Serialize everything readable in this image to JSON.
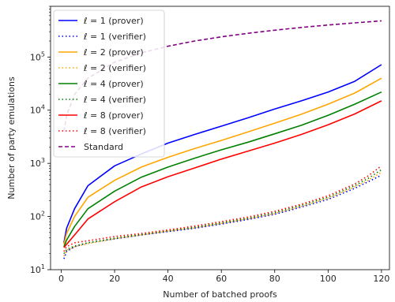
{
  "chart_data": {
    "type": "line",
    "xlabel": "Number of batched proofs",
    "ylabel": "Number of party emulations",
    "xlim": [
      -4,
      123
    ],
    "ylim": [
      10,
      900000
    ],
    "yscale": "log",
    "grid": false,
    "legend_position": "top-left",
    "x_ticks": [
      0,
      20,
      40,
      60,
      80,
      100,
      120
    ],
    "y_ticks": [
      {
        "base": "10",
        "exp": "1",
        "value": 10
      },
      {
        "base": "10",
        "exp": "2",
        "value": 100
      },
      {
        "base": "10",
        "exp": "3",
        "value": 1000
      },
      {
        "base": "10",
        "exp": "4",
        "value": 10000
      },
      {
        "base": "10",
        "exp": "5",
        "value": 100000
      }
    ],
    "series": [
      {
        "name": "ℓ = 1 (prover)",
        "color": "#0000ff",
        "dash": "solid",
        "x": [
          1,
          2,
          5,
          10,
          20,
          30,
          40,
          50,
          60,
          70,
          80,
          90,
          100,
          110,
          120
        ],
        "y": [
          32,
          60,
          140,
          380,
          900,
          1500,
          2400,
          3500,
          5000,
          7200,
          10500,
          15000,
          22000,
          35000,
          72000
        ]
      },
      {
        "name": "ℓ = 1 (verifier)",
        "color": "#0000ff",
        "dash": "dotted",
        "x": [
          1,
          2,
          5,
          10,
          20,
          30,
          40,
          50,
          60,
          70,
          80,
          90,
          100,
          110,
          115,
          120
        ],
        "y": [
          16,
          22,
          27,
          32,
          38,
          45,
          52,
          60,
          72,
          88,
          110,
          150,
          210,
          340,
          450,
          600
        ]
      },
      {
        "name": "ℓ = 2 (prover)",
        "color": "#ffa500",
        "dash": "solid",
        "x": [
          1,
          2,
          5,
          10,
          20,
          30,
          40,
          50,
          60,
          70,
          80,
          90,
          100,
          110,
          120
        ],
        "y": [
          30,
          48,
          100,
          230,
          480,
          850,
          1300,
          1900,
          2700,
          3900,
          5700,
          8400,
          13000,
          21000,
          40000
        ]
      },
      {
        "name": "ℓ = 2 (verifier)",
        "color": "#ffa500",
        "dash": "dotted",
        "x": [
          1,
          2,
          5,
          10,
          20,
          30,
          40,
          50,
          60,
          70,
          80,
          90,
          100,
          110,
          115,
          120
        ],
        "y": [
          18,
          23,
          27,
          31,
          38,
          45,
          53,
          61,
          74,
          90,
          113,
          155,
          220,
          360,
          480,
          680
        ]
      },
      {
        "name": "ℓ = 4 (prover)",
        "color": "#008000",
        "dash": "solid",
        "x": [
          1,
          2,
          5,
          10,
          20,
          30,
          40,
          50,
          60,
          70,
          80,
          90,
          100,
          110,
          120
        ],
        "y": [
          27,
          36,
          65,
          140,
          300,
          550,
          850,
          1250,
          1800,
          2500,
          3600,
          5200,
          8000,
          13000,
          22000
        ]
      },
      {
        "name": "ℓ = 4 (verifier)",
        "color": "#008000",
        "dash": "dotted",
        "x": [
          1,
          2,
          5,
          10,
          20,
          30,
          40,
          50,
          60,
          70,
          80,
          90,
          100,
          110,
          115,
          120
        ],
        "y": [
          20,
          24,
          28,
          32,
          39,
          46,
          54,
          63,
          76,
          93,
          118,
          162,
          230,
          380,
          520,
          760
        ]
      },
      {
        "name": "ℓ = 8 (prover)",
        "color": "#ff0000",
        "dash": "solid",
        "x": [
          1,
          2,
          5,
          10,
          20,
          30,
          40,
          50,
          60,
          70,
          80,
          90,
          100,
          110,
          120
        ],
        "y": [
          26,
          30,
          45,
          90,
          190,
          360,
          560,
          820,
          1200,
          1700,
          2400,
          3500,
          5300,
          8500,
          15000
        ]
      },
      {
        "name": "ℓ = 8 (verifier)",
        "color": "#ff0000",
        "dash": "dotted",
        "x": [
          1,
          2,
          5,
          10,
          20,
          30,
          40,
          50,
          60,
          70,
          80,
          90,
          100,
          110,
          115,
          120
        ],
        "y": [
          22,
          27,
          32,
          35,
          42,
          48,
          56,
          66,
          80,
          98,
          125,
          170,
          245,
          410,
          580,
          900
        ]
      },
      {
        "name": "Standard",
        "color": "#800080",
        "dash": "dashed",
        "x": [
          1,
          2,
          5,
          10,
          20,
          30,
          40,
          50,
          60,
          70,
          80,
          90,
          100,
          110,
          120
        ],
        "y": [
          4000,
          8000,
          20000,
          40000,
          80000,
          120000,
          160000,
          200000,
          240000,
          280000,
          320000,
          360000,
          400000,
          440000,
          480000
        ]
      }
    ]
  }
}
